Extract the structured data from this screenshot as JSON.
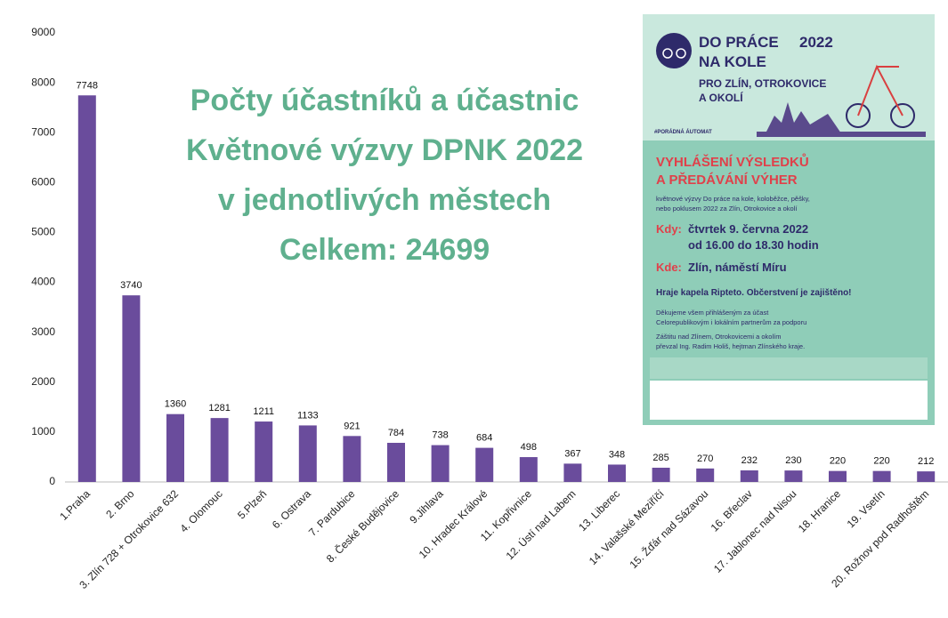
{
  "chart_data": {
    "type": "bar",
    "title": [
      "Počty účastníků a účastnic",
      "Květnové výzvy DPNK 2022",
      "v jednotlivých městech"
    ],
    "subtitle": "Celkem: 24699",
    "categories": [
      "1.Praha",
      "2. Brno",
      "3. Zlín 728 + Otrokovice 632",
      "4. Olomouc",
      "5.Plzeň",
      "6. Ostrava",
      "7. Pardubice",
      "8. České Budějovice",
      "9.Jihlava",
      "10. Hradec Králové",
      "11. Kopřivnice",
      "12. Ústí nad Labem",
      "13. Liberec",
      "14. Valašské Meziříčí",
      "15. Žďár nad Sázavou",
      "16. Břeclav",
      "17. Jablonec nad Nisou",
      "18. Hranice",
      "19. Vsetín",
      "20. Rožnov pod Radhoštěm"
    ],
    "values": [
      7748,
      3740,
      1360,
      1281,
      1211,
      1133,
      921,
      784,
      738,
      684,
      498,
      367,
      348,
      285,
      270,
      232,
      230,
      220,
      220,
      212
    ],
    "color": "#6a4c9c",
    "ylim": [
      0,
      9000
    ],
    "yticks": [
      0,
      1000,
      2000,
      3000,
      4000,
      5000,
      6000,
      7000,
      8000,
      9000
    ],
    "grid": false
  },
  "poster": {
    "brand_line1": "DO PRÁCE",
    "year": "2022",
    "brand_line2": "NA KOLE",
    "region": [
      "PRO ZLÍN, OTROKOVICE",
      "A OKOLÍ"
    ],
    "hashtag": "#PORÁDNÁ ÁUTOMAT",
    "headline": [
      "VYHLÁŠENÍ VÝSLEDKŮ",
      "A PŘEDÁVÁNÍ VÝHER"
    ],
    "intro": [
      "květnové výzvy Do práce na kole, koloběžce, pěšky,",
      "nebo poklusem 2022 za Zlín, Otrokovice a okolí"
    ],
    "when_label": "Kdy:",
    "when": [
      "čtvrtek 9. června 2022",
      "od 16.00 do 18.30 hodin"
    ],
    "where_label": "Kde:",
    "where": "Zlín, náměstí Míru",
    "band": "Hraje kapela Ripteto. Občerstvení je zajištěno!",
    "thanks": [
      "Děkujeme všem přihlášeným za účast",
      "Celorepublikovým i lokálním partnerům za podporu"
    ],
    "patron": [
      "Záštitu nad Zlínem, Otrokovicemi a okolím",
      "převzal Ing. Radim Holiš, hejtman Zlínského kraje."
    ]
  }
}
